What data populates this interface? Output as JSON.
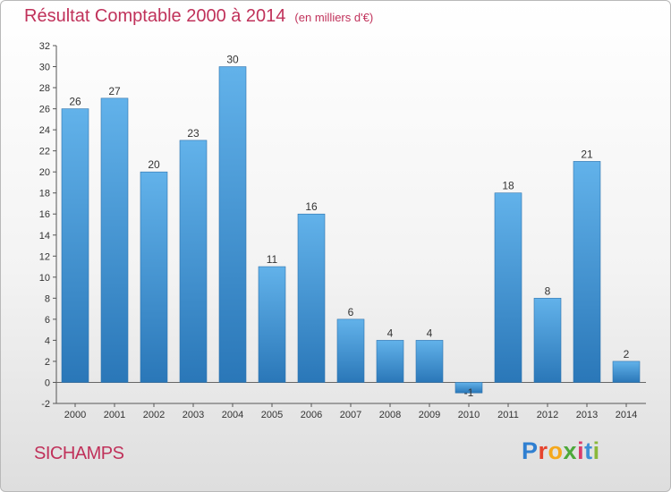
{
  "title": "Résultat Comptable 2000 à 2014",
  "subtitle": "(en milliers d'€)",
  "commune": "SICHAMPS",
  "logo": {
    "letters": [
      "P",
      "r",
      "o",
      "x",
      "i",
      "t",
      "i"
    ],
    "colors": [
      "#2f7fd1",
      "#e6442e",
      "#f5a81c",
      "#4da83a",
      "#d93b6a",
      "#3d8fd6",
      "#8ab83a"
    ]
  },
  "colors": {
    "bar_top": "#62b2ea",
    "bar_bottom": "#2a77b8",
    "accent": "#c0315a"
  },
  "chart_data": {
    "type": "bar",
    "categories": [
      "2000",
      "2001",
      "2002",
      "2003",
      "2004",
      "2005",
      "2006",
      "2007",
      "2008",
      "2009",
      "2010",
      "2011",
      "2012",
      "2013",
      "2014"
    ],
    "values": [
      26,
      27,
      20,
      23,
      30,
      11,
      16,
      6,
      4,
      4,
      -1,
      18,
      8,
      21,
      2
    ],
    "yticks": [
      -2,
      0,
      2,
      4,
      6,
      8,
      10,
      12,
      14,
      16,
      18,
      20,
      22,
      24,
      26,
      28,
      30,
      32
    ],
    "ylim": [
      -2,
      32
    ],
    "grid": false,
    "data_labels": true
  }
}
